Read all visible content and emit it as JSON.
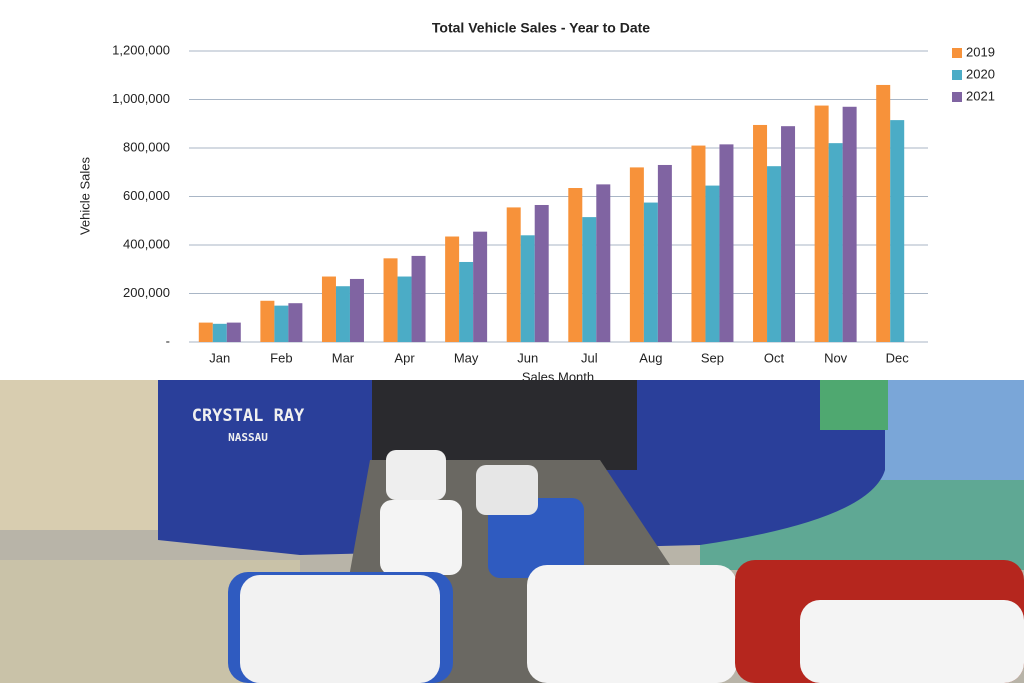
{
  "chart_data": {
    "type": "bar",
    "title": "Total Vehicle Sales - Year to Date",
    "y_label": "Vehicle Sales",
    "x_label": "Sales Month",
    "categories": [
      "Jan",
      "Feb",
      "Mar",
      "Apr",
      "May",
      "Jun",
      "Jul",
      "Aug",
      "Sep",
      "Oct",
      "Nov",
      "Dec"
    ],
    "series": [
      {
        "name": "2019",
        "color": "#f7923a",
        "values": [
          80000,
          170000,
          270000,
          345000,
          435000,
          555000,
          635000,
          720000,
          810000,
          895000,
          975000,
          1060000
        ]
      },
      {
        "name": "2020",
        "color": "#4bacc6",
        "values": [
          75000,
          150000,
          230000,
          270000,
          330000,
          440000,
          515000,
          575000,
          645000,
          725000,
          820000,
          915000
        ]
      },
      {
        "name": "2021",
        "color": "#8064a2",
        "values": [
          80000,
          160000,
          260000,
          355000,
          455000,
          565000,
          650000,
          730000,
          815000,
          890000,
          970000,
          null
        ]
      }
    ],
    "ylim": [
      0,
      1200000
    ],
    "yticks": [
      {
        "value": 0,
        "label": "-"
      },
      {
        "value": 200000,
        "label": "200,000"
      },
      {
        "value": 400000,
        "label": "400,000"
      },
      {
        "value": 600000,
        "label": "600,000"
      },
      {
        "value": 800000,
        "label": "800,000"
      },
      {
        "value": 1000000,
        "label": "1,000,000"
      },
      {
        "value": 1200000,
        "label": "1,200,000"
      }
    ],
    "grid": true,
    "legend": "right"
  },
  "photo": {
    "ship_name": "CRYSTAL RAY",
    "ship_port": "NASSAU"
  }
}
